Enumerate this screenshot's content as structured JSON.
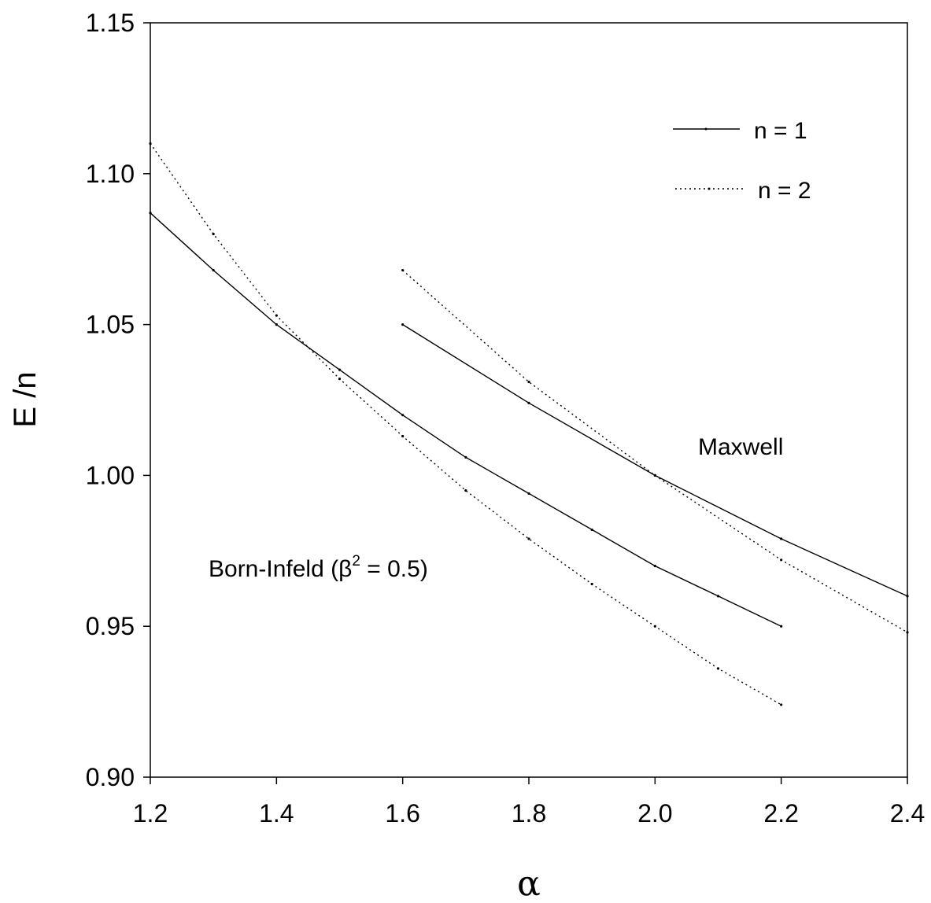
{
  "chart_data": {
    "type": "line",
    "title": "",
    "xlabel": "α",
    "ylabel": "E /n",
    "xlim": [
      1.2,
      2.4
    ],
    "ylim": [
      0.9,
      1.15
    ],
    "xticks": [
      "1.2",
      "1.4",
      "1.6",
      "1.8",
      "2.0",
      "2.2",
      "2.4"
    ],
    "xtick_values": [
      1.2,
      1.4,
      1.6,
      1.8,
      2.0,
      2.2,
      2.4
    ],
    "yticks": [
      "0.90",
      "0.95",
      "1.00",
      "1.05",
      "1.10",
      "1.15"
    ],
    "ytick_values": [
      0.9,
      0.95,
      1.0,
      1.05,
      1.1,
      1.15
    ],
    "grid": false,
    "legend_position": "top-right",
    "legend": [
      {
        "label": "n = 1",
        "style": "solid"
      },
      {
        "label": "n = 2",
        "style": "dotted"
      }
    ],
    "series": [
      {
        "n": 1,
        "style": "solid",
        "group": "Born-Infeld",
        "x": [
          1.2,
          1.3,
          1.4,
          1.5,
          1.6,
          1.7,
          1.8,
          1.9,
          2.0,
          2.1,
          2.2
        ],
        "y": [
          1.087,
          1.068,
          1.05,
          1.035,
          1.02,
          1.006,
          0.994,
          0.982,
          0.97,
          0.96,
          0.95
        ]
      },
      {
        "n": 2,
        "style": "dotted",
        "group": "Born-Infeld",
        "x": [
          1.2,
          1.3,
          1.4,
          1.5,
          1.6,
          1.7,
          1.8,
          1.9,
          2.0,
          2.1,
          2.2
        ],
        "y": [
          1.11,
          1.08,
          1.053,
          1.032,
          1.013,
          0.995,
          0.979,
          0.964,
          0.95,
          0.936,
          0.924
        ]
      },
      {
        "n": 1,
        "style": "solid",
        "group": "Maxwell",
        "x": [
          1.6,
          1.8,
          2.0,
          2.2,
          2.4
        ],
        "y": [
          1.05,
          1.024,
          1.0,
          0.979,
          0.96
        ]
      },
      {
        "n": 2,
        "style": "dotted",
        "group": "Maxwell",
        "x": [
          1.6,
          1.8,
          2.0,
          2.2,
          2.4
        ],
        "y": [
          1.068,
          1.031,
          1.0,
          0.972,
          0.948
        ]
      }
    ],
    "annotations": {
      "maxwell": "Maxwell",
      "born_infeld_prefix": "Born-Infeld (β",
      "born_infeld_sup": "2",
      "born_infeld_suffix": " = 0.5)"
    }
  }
}
